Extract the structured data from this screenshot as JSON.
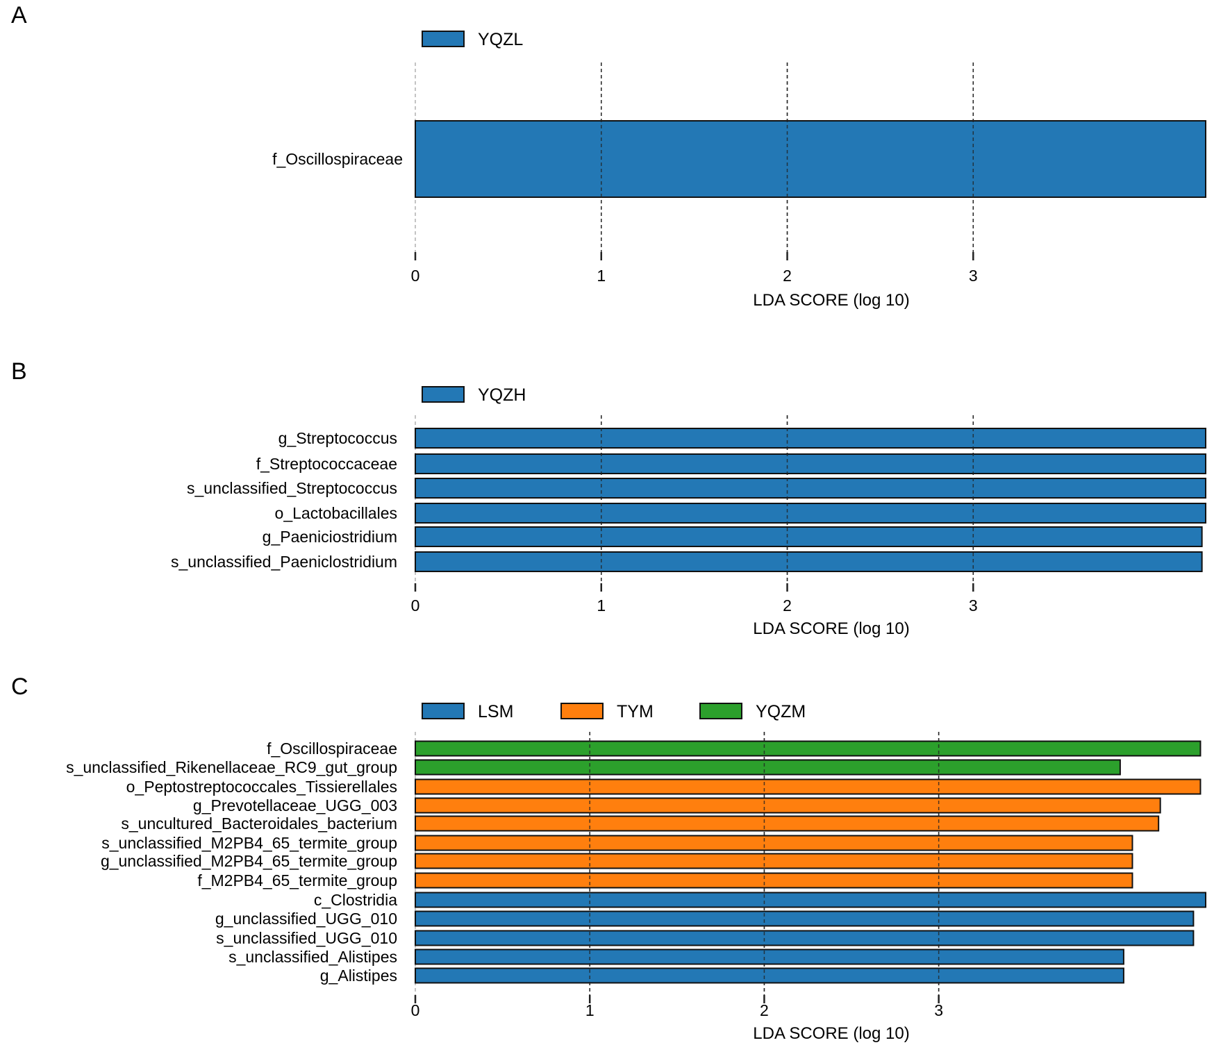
{
  "chart_data": [
    {
      "type": "bar",
      "orientation": "horizontal",
      "panel": "A",
      "xlabel": "LDA SCORE (log 10)",
      "xticks": [
        "0",
        "1",
        "2",
        "3"
      ],
      "xlim": [
        0,
        4.25
      ],
      "legend": [
        {
          "name": "YQZL",
          "color": "#2378b5"
        }
      ],
      "categories": [
        "f_Oscillospiraceae"
      ],
      "values": [
        4.25
      ],
      "groups": [
        "YQZL"
      ]
    },
    {
      "type": "bar",
      "orientation": "horizontal",
      "panel": "B",
      "xlabel": "LDA SCORE (log 10)",
      "xticks": [
        "0",
        "1",
        "2",
        "3"
      ],
      "xlim": [
        0,
        4.25
      ],
      "legend": [
        {
          "name": "YQZH",
          "color": "#2378b5"
        }
      ],
      "categories": [
        "g_Streptococcus",
        "f_Streptococcaceae",
        "s_unclassified_Streptococcus",
        "o_Lactobacillales",
        "g_Paeniciostridium",
        "s_unclassified_Paeniclostridium"
      ],
      "values": [
        4.25,
        4.25,
        4.25,
        4.25,
        4.23,
        4.23
      ],
      "groups": [
        "YQZH",
        "YQZH",
        "YQZH",
        "YQZH",
        "YQZH",
        "YQZH"
      ]
    },
    {
      "type": "bar",
      "orientation": "horizontal",
      "panel": "C",
      "xlabel": "LDA SCORE (log 10)",
      "xticks": [
        "0",
        "1",
        "2",
        "3"
      ],
      "xlim": [
        0,
        4.53
      ],
      "legend": [
        {
          "name": "LSM",
          "color": "#2378b5"
        },
        {
          "name": "TYM",
          "color": "#ff7f0e"
        },
        {
          "name": "YQZM",
          "color": "#2ca02c"
        }
      ],
      "categories": [
        "f_Oscillospiraceae",
        "s_unclassified_Rikenellaceae_RC9_gut_group",
        "o_Peptostreptococcales_Tissierellales",
        "g_Prevotellaceae_UGG_003",
        "s_uncultured_Bacteroidales_bacterium",
        "s_unclassified_M2PB4_65_termite_group",
        "g_unclassified_M2PB4_65_termite_group",
        "f_M2PB4_65_termite_group",
        "c_Clostridia",
        "g_unclassified_UGG_010",
        "s_unclassified_UGG_010",
        "s_unclassified_Alistipes",
        "g_Alistipes"
      ],
      "values": [
        4.5,
        4.04,
        4.5,
        4.27,
        4.26,
        4.11,
        4.11,
        4.11,
        4.53,
        4.46,
        4.46,
        4.06,
        4.06
      ],
      "groups": [
        "YQZM",
        "YQZM",
        "TYM",
        "TYM",
        "TYM",
        "TYM",
        "TYM",
        "TYM",
        "LSM",
        "LSM",
        "LSM",
        "LSM",
        "LSM"
      ]
    }
  ],
  "panels": [
    "A",
    "B",
    "C"
  ]
}
